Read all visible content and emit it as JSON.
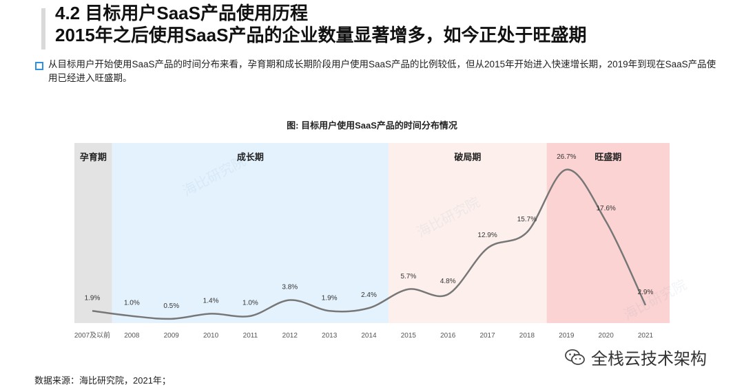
{
  "header": {
    "title_line1": "4.2 目标用户SaaS产品使用历程",
    "title_line2": "2015年之后使用SaaS产品的企业数量显著增多，如今正处于旺盛期"
  },
  "description": "从目标用户开始使用SaaS产品的时间分布来看，孕育期和成长期阶段用户使用SaaS产品的比例较低，但从2015年开始进入快速增长期，2019年到现在SaaS产品使用已经进入旺盛期。",
  "chart_data": {
    "type": "line",
    "title": "图: 目标用户使用SaaS产品的时间分布情况",
    "categories": [
      "2007及以前",
      "2008",
      "2009",
      "2010",
      "2011",
      "2012",
      "2013",
      "2014",
      "2015",
      "2016",
      "2017",
      "2018",
      "2019",
      "2020",
      "2021"
    ],
    "values": [
      1.9,
      1.0,
      0.5,
      1.4,
      1.0,
      3.8,
      1.9,
      2.4,
      5.7,
      4.8,
      12.9,
      15.7,
      26.7,
      17.6,
      2.9
    ],
    "labels": [
      "1.9%",
      "1.0%",
      "0.5%",
      "1.4%",
      "1.0%",
      "3.8%",
      "1.9%",
      "2.4%",
      "5.7%",
      "4.8%",
      "12.9%",
      "15.7%",
      "26.7%",
      "17.6%",
      "2.9%"
    ],
    "unit": "%",
    "ylim": [
      0,
      28
    ],
    "phases": [
      {
        "name": "孕育期",
        "start": 0,
        "end": 0,
        "color": "#e3e3e3"
      },
      {
        "name": "成长期",
        "start": 1,
        "end": 7,
        "color": "#e4f2fd"
      },
      {
        "name": "破局期",
        "start": 8,
        "end": 11,
        "color": "#fdf0ec"
      },
      {
        "name": "旺盛期",
        "start": 12,
        "end": 14,
        "color": "#fbd3d2"
      }
    ],
    "line_color": "#777777"
  },
  "source": "数据来源：海比研究院，2021年；",
  "brand": "全栈云技术架构",
  "watermark_text": "海比研究院"
}
